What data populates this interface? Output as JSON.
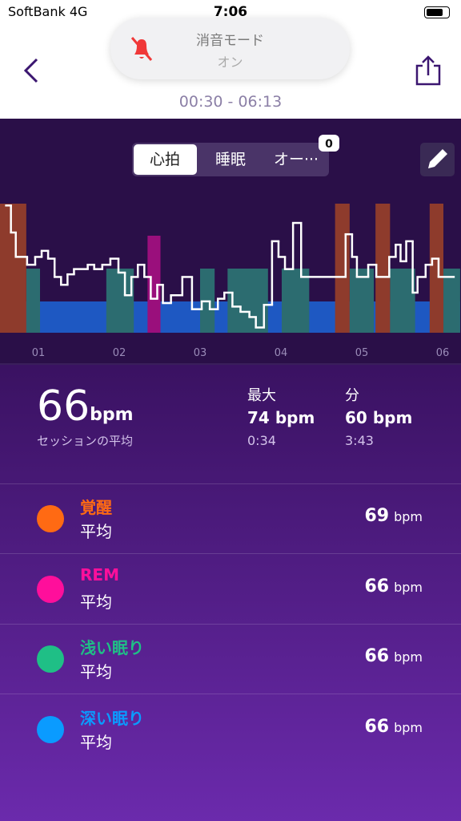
{
  "status_bar": {
    "carrier": "SoftBank",
    "network": "4G",
    "time": "7:06"
  },
  "notification": {
    "title": "消音モード",
    "state": "オン"
  },
  "session": {
    "range": "00:30 - 06:13"
  },
  "tabs": {
    "items": [
      "心拍",
      "睡眠",
      "オー···"
    ],
    "selected": 0,
    "badge": "0"
  },
  "graph": {
    "xlim": [
      0.5,
      6.217
    ],
    "ylim": [
      59.4,
      75.5
    ],
    "xticks": [
      {
        "value": 1,
        "label": "01"
      },
      {
        "value": 2,
        "label": "02"
      },
      {
        "value": 3,
        "label": "03"
      },
      {
        "value": 4,
        "label": "04"
      },
      {
        "value": 5,
        "label": "05"
      },
      {
        "value": 6,
        "label": "06"
      }
    ],
    "line_color": "#ffffff",
    "heart_rate": {
      "x": [
        0.6,
        0.66,
        0.72,
        0.86,
        0.96,
        1.04,
        1.12,
        1.2,
        1.28,
        1.36,
        1.44,
        1.61,
        1.69,
        1.79,
        1.89,
        1.99,
        2.07,
        2.15,
        2.23,
        2.31,
        2.39,
        2.47,
        2.54,
        2.64,
        2.78,
        2.9,
        3.02,
        3.12,
        3.22,
        3.3,
        3.4,
        3.5,
        3.61,
        3.69,
        3.79,
        3.89,
        3.97,
        4.05,
        4.15,
        4.25,
        4.8,
        4.88,
        4.94,
        5.08,
        5.18,
        5.34,
        5.42,
        5.48,
        5.55,
        5.63,
        5.69,
        5.79,
        5.87,
        5.95
      ],
      "values": [
        74,
        70.9,
        68.1,
        67.2,
        68.1,
        68.8,
        67.9,
        65.8,
        64.9,
        66.1,
        66.7,
        67.2,
        66.7,
        67.2,
        67.9,
        66.3,
        63.7,
        65.8,
        67.2,
        65.8,
        63.3,
        64.9,
        62.8,
        63.7,
        65.8,
        62.1,
        63,
        62.1,
        63.3,
        64,
        62.4,
        61.8,
        61.2,
        60,
        62.6,
        69.9,
        68.1,
        66.7,
        72,
        65.8,
        70.7,
        68.1,
        65.8,
        67.2,
        65.8,
        68.1,
        69.5,
        67.6,
        69.9,
        64,
        65.8,
        67.2,
        67.9,
        65.8
      ]
    }
  },
  "summary": {
    "average": 66,
    "unit": "bpm",
    "average_label": "セッションの平均",
    "max_label": "最大",
    "max_value": 74,
    "max_time": "0:34",
    "min_label": "分",
    "min_value": 60,
    "min_time": "3:43"
  },
  "stages": [
    {
      "name": "覚醒",
      "label": "平均",
      "value": 69,
      "unit": "bpm",
      "color": "#ff6a13",
      "chart_color": "#8e3b2c",
      "segments": [
        [
          0.5,
          0.85
        ],
        [
          4.67,
          4.85
        ],
        [
          5.17,
          5.35
        ],
        [
          5.84,
          6.01
        ]
      ]
    },
    {
      "name": "REM",
      "label": "平均",
      "value": 66,
      "unit": "bpm",
      "color": "#ff0f9b",
      "chart_color": "#9a0f7c",
      "segments": [
        [
          2.35,
          2.51
        ]
      ]
    },
    {
      "name": "浅い眠り",
      "label": "平均",
      "value": 66,
      "unit": "bpm",
      "color": "#1fbf86",
      "chart_color": "#2c6c70",
      "segments": [
        [
          0.85,
          1.02
        ],
        [
          1.84,
          2.18
        ],
        [
          3.0,
          3.18
        ],
        [
          3.34,
          3.84
        ],
        [
          4.01,
          4.35
        ],
        [
          4.85,
          5.15
        ],
        [
          5.35,
          5.66
        ],
        [
          6.01,
          6.217
        ]
      ]
    },
    {
      "name": "深い眠り",
      "label": "平均",
      "value": 66,
      "unit": "bpm",
      "color": "#0a9bff",
      "chart_color": "#1e58c2",
      "segments": [
        [
          0.5,
          6.217
        ]
      ]
    }
  ]
}
